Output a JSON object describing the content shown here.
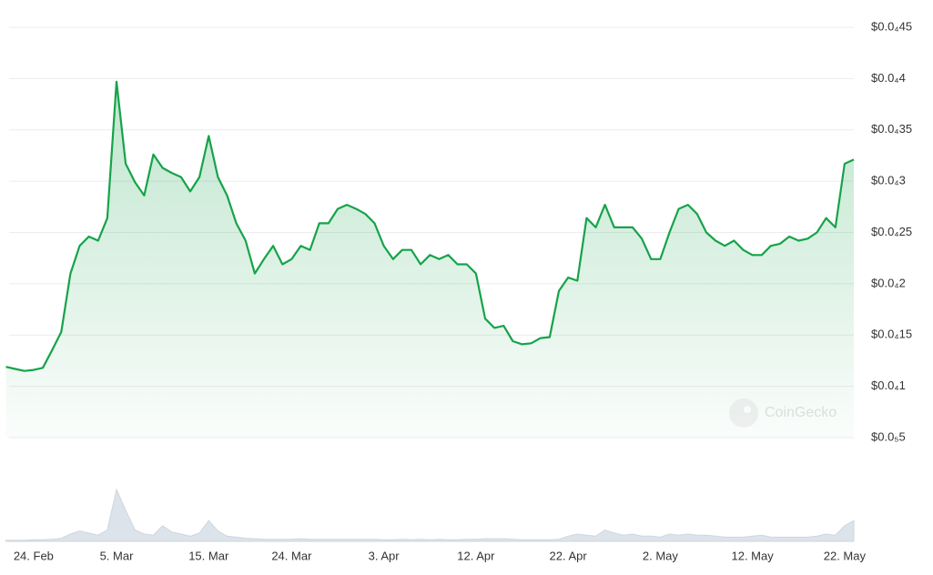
{
  "chart_data": [
    {
      "type": "line",
      "color": "#16a34a",
      "grid": true,
      "watermark": "CoinGecko",
      "categories": [
        null,
        null,
        null,
        "24. Feb",
        null,
        null,
        null,
        null,
        null,
        null,
        null,
        null,
        "5. Mar",
        null,
        null,
        null,
        null,
        null,
        null,
        null,
        null,
        null,
        "15. Mar",
        null,
        null,
        null,
        null,
        null,
        null,
        null,
        null,
        "24. Mar",
        null,
        null,
        null,
        null,
        null,
        null,
        null,
        null,
        null,
        "3. Apr",
        null,
        null,
        null,
        null,
        null,
        null,
        null,
        null,
        null,
        "12. Apr",
        null,
        null,
        null,
        null,
        null,
        null,
        null,
        null,
        null,
        "22. Apr",
        null,
        null,
        null,
        null,
        null,
        null,
        null,
        null,
        null,
        "2. May",
        null,
        null,
        null,
        null,
        null,
        null,
        null,
        null,
        null,
        "12. May",
        null,
        null,
        null,
        null,
        null,
        null,
        null,
        null,
        null,
        "22. May",
        null
      ],
      "values": [
        1.19e-06,
        1.17e-06,
        1.15e-06,
        1.16e-06,
        1.18e-06,
        1.35e-06,
        1.53e-06,
        2.1e-06,
        2.37e-06,
        2.46e-06,
        2.42e-06,
        2.64e-06,
        3.97e-06,
        3.17e-06,
        2.99e-06,
        2.86e-06,
        3.26e-06,
        3.13e-06,
        3.08e-06,
        3.04e-06,
        2.9e-06,
        3.04e-06,
        3.44e-06,
        3.04e-06,
        2.86e-06,
        2.59e-06,
        2.42e-06,
        2.1e-06,
        2.24e-06,
        2.37e-06,
        2.19e-06,
        2.24e-06,
        2.37e-06,
        2.33e-06,
        2.59e-06,
        2.59e-06,
        2.73e-06,
        2.77e-06,
        2.73e-06,
        2.68e-06,
        2.59e-06,
        2.37e-06,
        2.24e-06,
        2.33e-06,
        2.33e-06,
        2.19e-06,
        2.28e-06,
        2.24e-06,
        2.28e-06,
        2.19e-06,
        2.19e-06,
        2.1e-06,
        1.66e-06,
        1.57e-06,
        1.59e-06,
        1.44e-06,
        1.41e-06,
        1.42e-06,
        1.47e-06,
        1.48e-06,
        1.93e-06,
        2.06e-06,
        2.03e-06,
        2.64e-06,
        2.55e-06,
        2.77e-06,
        2.55e-06,
        2.55e-06,
        2.55e-06,
        2.44e-06,
        2.24e-06,
        2.24e-06,
        2.5e-06,
        2.73e-06,
        2.77e-06,
        2.68e-06,
        2.5e-06,
        2.42e-06,
        2.37e-06,
        2.42e-06,
        2.33e-06,
        2.28e-06,
        2.28e-06,
        2.37e-06,
        2.39e-06,
        2.46e-06,
        2.42e-06,
        2.44e-06,
        2.5e-06,
        2.64e-06,
        2.55e-06,
        3.17e-06,
        3.21e-06
      ],
      "ylim": [
        5e-07,
        4.5e-06
      ],
      "yticks": [
        {
          "value": 5e-07,
          "label": "$0.0₅5"
        },
        {
          "value": 1e-06,
          "label": "$0.0₄1"
        },
        {
          "value": 1.5e-06,
          "label": "$0.0₄15"
        },
        {
          "value": 2e-06,
          "label": "$0.0₄2"
        },
        {
          "value": 2.5e-06,
          "label": "$0.0₄25"
        },
        {
          "value": 3e-06,
          "label": "$0.0₄3"
        },
        {
          "value": 3.5e-06,
          "label": "$0.0₄35"
        },
        {
          "value": 4e-06,
          "label": "$0.0₄4"
        },
        {
          "value": 4.5e-06,
          "label": "$0.0₄45"
        }
      ]
    },
    {
      "type": "area",
      "color": "#dde3ea",
      "ylim": [
        0,
        100
      ],
      "values": [
        2,
        2,
        2,
        3,
        3,
        4,
        6,
        14,
        20,
        16,
        12,
        22,
        100,
        60,
        22,
        14,
        12,
        30,
        18,
        14,
        10,
        16,
        40,
        20,
        10,
        8,
        6,
        5,
        4,
        4,
        4,
        4,
        5,
        4,
        4,
        4,
        4,
        4,
        4,
        4,
        4,
        3,
        3,
        4,
        3,
        4,
        3,
        4,
        3,
        3,
        4,
        4,
        5,
        5,
        5,
        4,
        3,
        3,
        3,
        3,
        4,
        10,
        14,
        12,
        10,
        22,
        16,
        12,
        14,
        10,
        10,
        8,
        14,
        12,
        14,
        12,
        12,
        10,
        8,
        8,
        8,
        10,
        12,
        8,
        8,
        8,
        8,
        8,
        10,
        14,
        12,
        30,
        40
      ]
    }
  ]
}
